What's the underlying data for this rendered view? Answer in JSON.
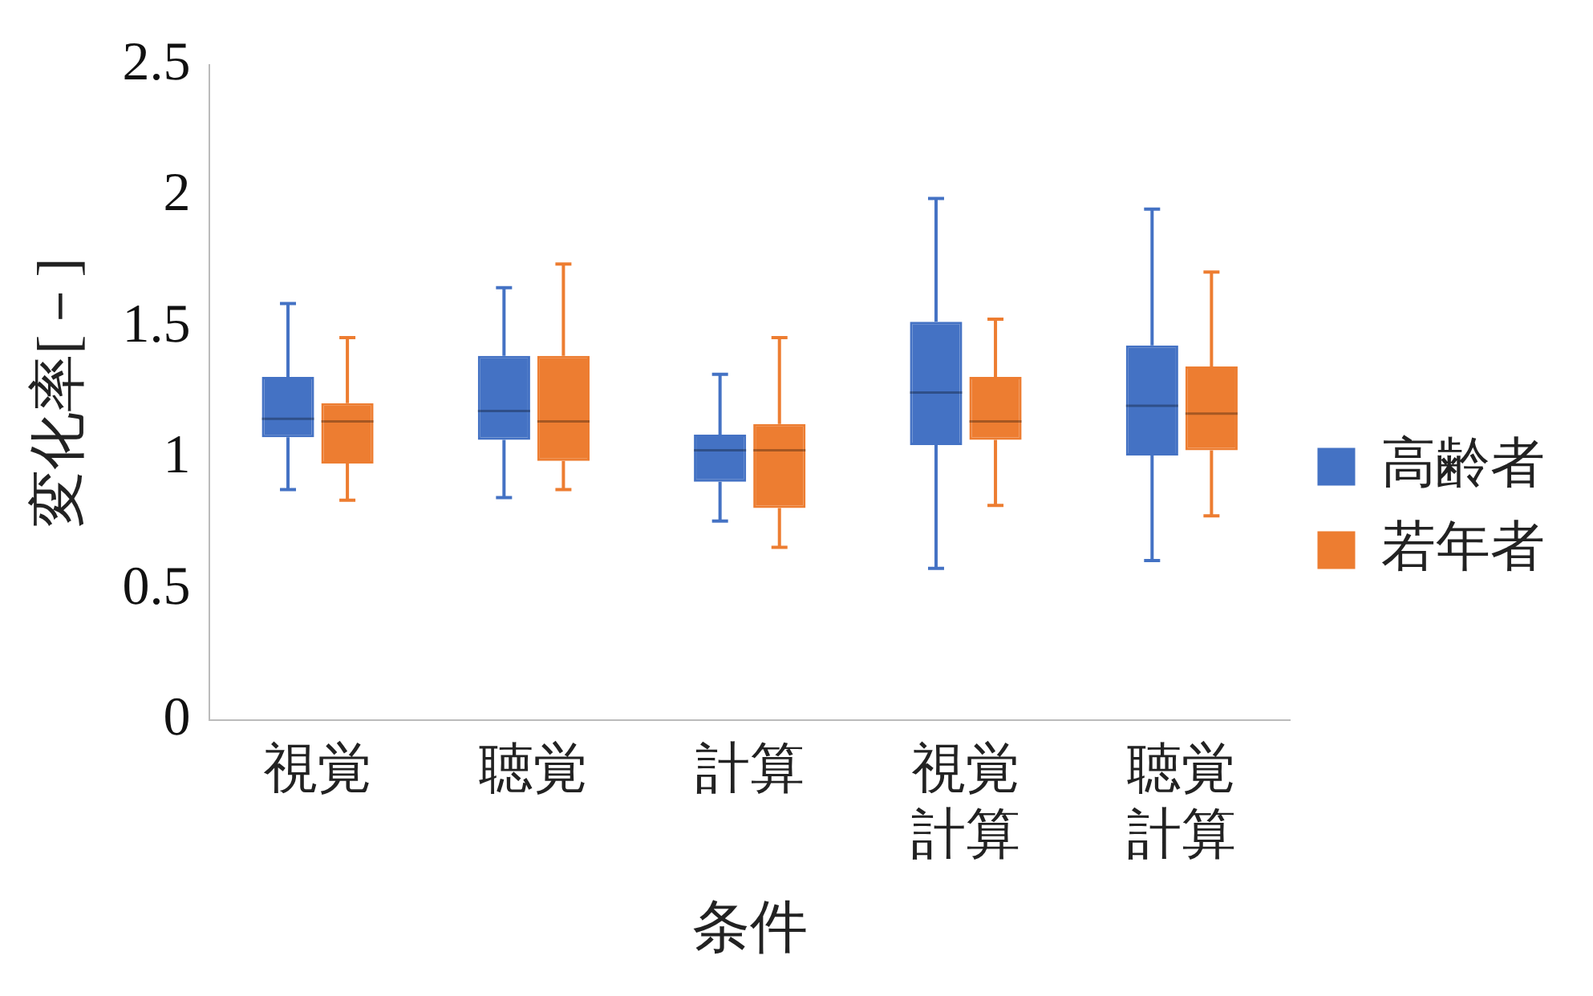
{
  "chart_data": {
    "type": "box",
    "categories": [
      "視覚",
      "聴覚",
      "計算",
      "視覚計算",
      "聴覚計算"
    ],
    "series": [
      {
        "name": "高齢者",
        "color": "#4472c4",
        "boxes": [
          {
            "low": 0.88,
            "q1": 1.08,
            "median": 1.15,
            "q3": 1.31,
            "high": 1.59
          },
          {
            "low": 0.85,
            "q1": 1.07,
            "median": 1.18,
            "q3": 1.39,
            "high": 1.65
          },
          {
            "low": 0.76,
            "q1": 0.91,
            "median": 1.03,
            "q3": 1.09,
            "high": 1.32
          },
          {
            "low": 0.58,
            "q1": 1.05,
            "median": 1.25,
            "q3": 1.52,
            "high": 1.99
          },
          {
            "low": 0.61,
            "q1": 1.01,
            "median": 1.2,
            "q3": 1.43,
            "high": 1.95
          }
        ]
      },
      {
        "name": "若年者",
        "color": "#ed7d31",
        "boxes": [
          {
            "low": 0.84,
            "q1": 0.98,
            "median": 1.14,
            "q3": 1.21,
            "high": 1.46
          },
          {
            "low": 0.88,
            "q1": 0.99,
            "median": 1.14,
            "q3": 1.39,
            "high": 1.74
          },
          {
            "low": 0.66,
            "q1": 0.81,
            "median": 1.03,
            "q3": 1.13,
            "high": 1.46
          },
          {
            "low": 0.82,
            "q1": 1.07,
            "median": 1.14,
            "q3": 1.31,
            "high": 1.53
          },
          {
            "low": 0.78,
            "q1": 1.03,
            "median": 1.17,
            "q3": 1.35,
            "high": 1.71
          }
        ]
      }
    ],
    "ylim": [
      0,
      2.5
    ],
    "yticks": [
      0,
      0.5,
      1,
      1.5,
      2,
      2.5
    ],
    "xlabel": "条件",
    "ylabel": "変化率[－]",
    "legend": "right"
  }
}
